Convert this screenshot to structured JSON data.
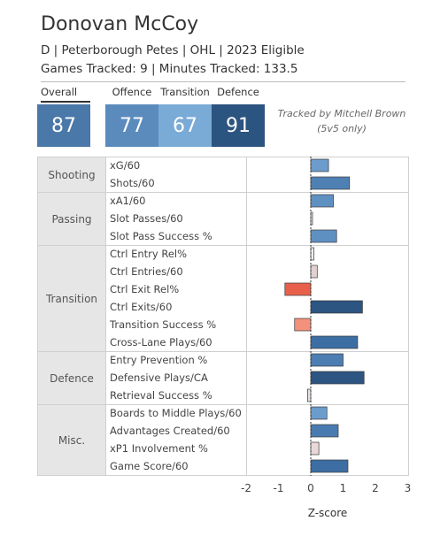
{
  "player": {
    "name": "Donovan McCoy",
    "info_line": "D | Peterborough Petes | OHL | 2023 Eligible",
    "tracked_line": "Games Tracked: 9 | Minutes Tracked: 133.5"
  },
  "ratings": {
    "overall": {
      "label": "Overall",
      "value": "87",
      "color": "#4a78a8"
    },
    "offence": {
      "label": "Offence",
      "value": "77",
      "color": "#5b8bbd"
    },
    "transition": {
      "label": "Transition",
      "value": "67",
      "color": "#7aaad6"
    },
    "defence": {
      "label": "Defence",
      "value": "91",
      "color": "#2c5480"
    }
  },
  "tracked_by": "Tracked by Mitchell Brown (5v5 only)",
  "categories": [
    {
      "label": "Shooting",
      "metrics": [
        "xG/60",
        "Shots/60"
      ]
    },
    {
      "label": "Passing",
      "metrics": [
        "xA1/60",
        "Slot Passes/60",
        "Slot Pass Success %"
      ]
    },
    {
      "label": "Transition",
      "metrics": [
        "Ctrl Entry Rel%",
        "Ctrl Entries/60",
        "Ctrl Exit Rel%",
        "Ctrl Exits/60",
        "Transition Success %",
        "Cross-Lane Plays/60"
      ]
    },
    {
      "label": "Defence",
      "metrics": [
        "Entry Prevention %",
        "Defensive Plays/CA",
        "Retrieval Success %"
      ]
    },
    {
      "label": "Misc.",
      "metrics": [
        "Boards to Middle Plays/60",
        "Advantages Created/60",
        "xP1 Involvement %",
        "Game Score/60"
      ]
    }
  ],
  "chart_data": {
    "type": "bar",
    "orientation": "horizontal",
    "categories": [
      "xG/60",
      "Shots/60",
      "xA1/60",
      "Slot Passes/60",
      "Slot Pass Success %",
      "Ctrl Entry Rel%",
      "Ctrl Entries/60",
      "Ctrl Exit Rel%",
      "Ctrl Exits/60",
      "Transition Success %",
      "Cross-Lane Plays/60",
      "Entry Prevention %",
      "Defensive Plays/CA",
      "Retrieval Success %",
      "Boards to Middle Plays/60",
      "Advantages Created/60",
      "xP1 Involvement %",
      "Game Score/60"
    ],
    "values": [
      0.55,
      1.2,
      0.7,
      0.03,
      0.8,
      0.1,
      0.2,
      -0.8,
      1.6,
      -0.5,
      1.45,
      1.0,
      1.65,
      -0.1,
      0.5,
      0.85,
      0.25,
      1.15
    ],
    "bar_colors": [
      "#6b9ccc",
      "#4f80b3",
      "#5f90c2",
      "#e8e8e8",
      "#5f90c2",
      "#ececec",
      "#e0d0d0",
      "#e8604c",
      "#2c5582",
      "#f4917c",
      "#3d6ea3",
      "#4c7eb2",
      "#2c5582",
      "#e8e0e0",
      "#6b9ccc",
      "#4a7bb0",
      "#e8d8d8",
      "#3d6ea3"
    ],
    "xlim": [
      -2,
      3
    ],
    "xticks": [
      "-2",
      "-1",
      "0",
      "1",
      "2",
      "3"
    ],
    "xlabel": "Z-score",
    "zero_line": "dotted"
  }
}
